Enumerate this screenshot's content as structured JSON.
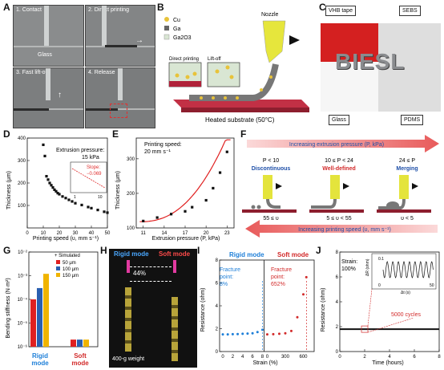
{
  "panels": {
    "A": {
      "letter": "A",
      "labels": [
        "1. Contact",
        "2. Direct printing",
        "3. Fast lift-off",
        "4. Release"
      ],
      "glass": "Glass"
    },
    "B": {
      "letter": "B",
      "legend": [
        "Cu",
        "Ga",
        "Ga2O3"
      ],
      "nozzle": "Nozzle",
      "inset1": "Direct printing",
      "inset2": "Lift-off",
      "substrate": "Heated substrate (50°C)"
    },
    "C": {
      "letter": "C",
      "labels": [
        "VHB tape",
        "SEBS",
        "Glass",
        "PDMS"
      ],
      "word": "BIESL"
    },
    "D": {
      "letter": "D",
      "xlabel": "Printing speed (υ, mm s⁻¹)",
      "ylabel": "Thickness (μm)",
      "annotation": "Extrusion pressure:",
      "annotation2": "15 kPa",
      "inset_slope": "Slope:",
      "inset_slope_val": "−0.069"
    },
    "E": {
      "letter": "E",
      "xlabel": "Extrusion pressure (P, kPa)",
      "ylabel": "Thickness (μm)",
      "annotation": "Printing speed:",
      "annotation2": "20 mm s⁻¹"
    },
    "F": {
      "letter": "F",
      "top_arrow": "Increasing extrusion pressure (P, kPa)",
      "bottom_arrow": "Increasing printing speed (υ, mm s⁻¹)",
      "regimes": [
        {
          "cond": "P < 10",
          "name": "Discontinuous",
          "sub": "55 ≤ υ",
          "color": "#1e4fa8"
        },
        {
          "cond": "10 ≤ P < 24",
          "name": "Well-defined",
          "sub": "5 ≤ υ < 55",
          "color": "#d22a2a"
        },
        {
          "cond": "24 ≤ P",
          "name": "Merging",
          "sub": "υ < 5",
          "color": "#1e4fa8"
        }
      ]
    },
    "G": {
      "letter": "G",
      "ylabel": "Bending stiffness (N·m²)",
      "legend_title": "+ Simulated",
      "legend": [
        "50 μm",
        "100 μm",
        "150 μm"
      ],
      "x1": "Rigid",
      "x1b": "mode",
      "x2": "Soft",
      "x2b": "mode"
    },
    "H": {
      "letter": "H",
      "rigid": "Rigid mode",
      "soft": "Soft mode",
      "pct": "44%",
      "weight": "400-g weight"
    },
    "I": {
      "letter": "I",
      "ylabel": "Resistance (ohm)",
      "xlabel": "Strain (%)",
      "rigid": "Rigid mode",
      "soft": "Soft mode",
      "fp1": "Fracture",
      "fp1b": "point:",
      "fp1c": "8%",
      "fp2": "Fracture",
      "fp2b": "point:",
      "fp2c": "652%"
    },
    "J": {
      "letter": "J",
      "ylabel": "Resistance (ohm)",
      "xlabel": "Time (hours)",
      "strain": "Strain:",
      "strain2": "100%",
      "cycles": "5000 cycles",
      "inset_y": "ΔR (ohm)",
      "inset_x": "Δt (s)"
    }
  },
  "chart_data": [
    {
      "type": "scatter",
      "panel": "D",
      "xlabel": "Printing speed (υ, mm s⁻¹)",
      "ylabel": "Thickness (μm)",
      "xlim": [
        0,
        50
      ],
      "ylim": [
        0,
        400
      ],
      "x": [
        10,
        11,
        12,
        13,
        14,
        15,
        16,
        17,
        18,
        19,
        20,
        22,
        24,
        26,
        28,
        30,
        34,
        38,
        40,
        44,
        48,
        50
      ],
      "y": [
        370,
        320,
        230,
        215,
        200,
        190,
        180,
        170,
        163,
        155,
        150,
        140,
        133,
        125,
        118,
        110,
        102,
        93,
        88,
        80,
        72,
        68
      ],
      "xticks": [
        "0",
        "10",
        "20",
        "30",
        "40",
        "50"
      ],
      "yticks": [
        "100",
        "200",
        "300",
        "400"
      ]
    },
    {
      "type": "scatter",
      "panel": "E",
      "xlabel": "Extrusion pressure (P, kPa)",
      "ylabel": "Thickness (μm)",
      "xlim": [
        10,
        24
      ],
      "ylim": [
        100,
        360
      ],
      "x": [
        11,
        13,
        15,
        17,
        18,
        20,
        21,
        22,
        23
      ],
      "y": [
        120,
        130,
        140,
        148,
        160,
        180,
        215,
        260,
        320
      ],
      "xticks": [
        "11",
        "14",
        "17",
        "20",
        "23"
      ],
      "yticks": [
        "100",
        "200",
        "300"
      ]
    },
    {
      "type": "bar",
      "panel": "G",
      "ylabel": "Bending stiffness (N·m²)",
      "log": true,
      "categories": [
        "Rigid mode",
        "Soft mode"
      ],
      "series": [
        {
          "name": "50 μm",
          "values": [
            0.0001,
            2e-06
          ]
        },
        {
          "name": "100 μm",
          "values": [
            0.0003,
            2e-06
          ]
        },
        {
          "name": "150 μm",
          "values": [
            0.0012,
            2e-06
          ]
        }
      ],
      "yticks": [
        "10⁻⁶",
        "10⁻⁵",
        "10⁻⁴",
        "10⁻³",
        "10⁻²"
      ]
    },
    {
      "type": "scatter",
      "panel": "I",
      "ylabel": "Resistance (ohm)",
      "xlabel": "Strain (%)",
      "series": [
        {
          "name": "Rigid mode",
          "x": [
            0,
            1,
            2,
            3,
            4,
            5,
            6,
            7,
            8
          ],
          "y": [
            1.5,
            1.5,
            1.52,
            1.53,
            1.55,
            1.57,
            1.6,
            1.7,
            1.9
          ]
        },
        {
          "name": "Soft mode",
          "x": [
            0,
            100,
            200,
            300,
            400,
            500,
            600,
            650
          ],
          "y": [
            1.5,
            1.52,
            1.55,
            1.6,
            1.8,
            3,
            5,
            6.5
          ]
        }
      ],
      "xticks_rigid": [
        "0",
        "2",
        "4",
        "6",
        "8"
      ],
      "xticks_soft": [
        "0",
        "300",
        "600"
      ],
      "yticks": [
        "0",
        "2",
        "4",
        "6",
        "8"
      ]
    },
    {
      "type": "line",
      "panel": "J",
      "ylabel": "Resistance (ohm)",
      "xlabel": "Time (hours)",
      "xlim": [
        0,
        8
      ],
      "ylim": [
        0,
        8
      ],
      "x": [
        0,
        8
      ],
      "y": [
        1.8,
        1.8
      ],
      "xticks": [
        "0",
        "2",
        "4",
        "6",
        "8"
      ],
      "yticks": [
        "0",
        "2",
        "4",
        "6",
        "8"
      ]
    }
  ]
}
